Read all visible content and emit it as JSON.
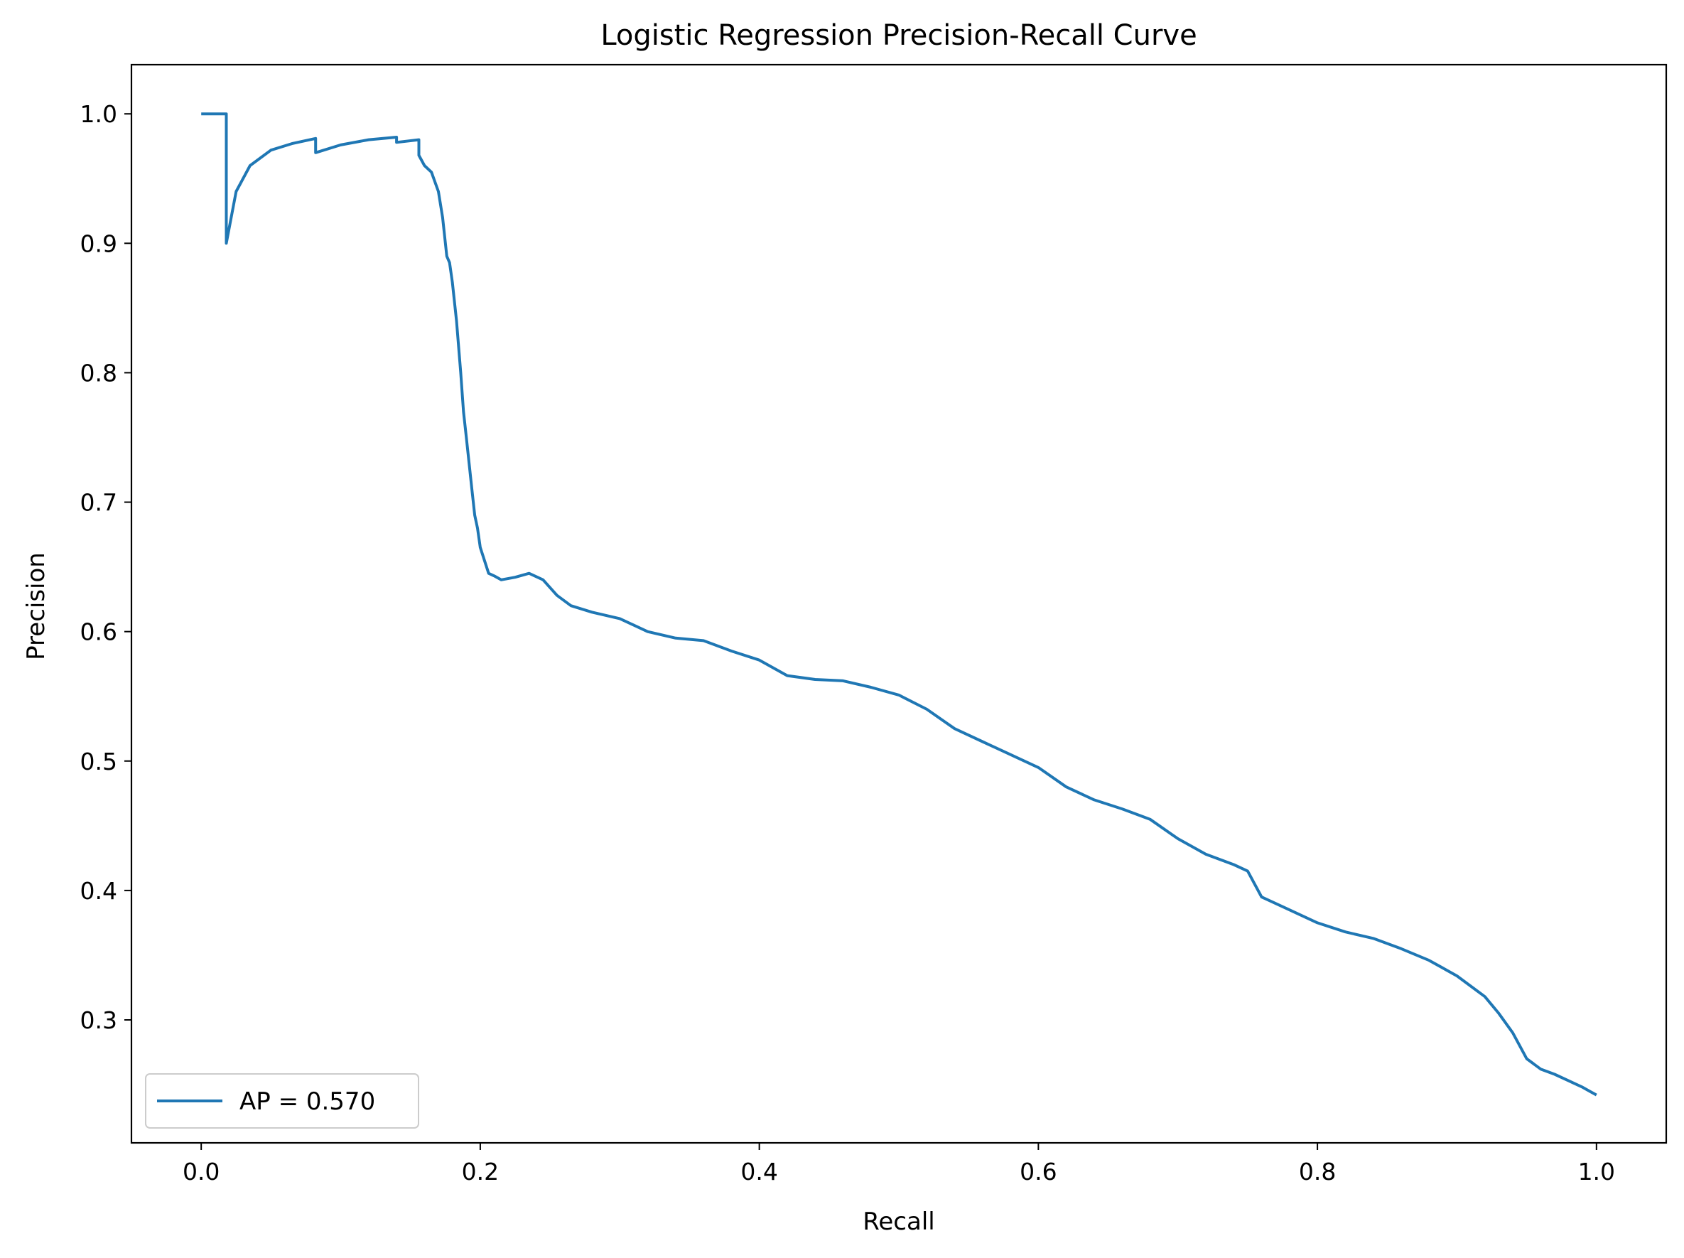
{
  "chart_data": {
    "type": "line",
    "title": "Logistic Regression Precision-Recall Curve",
    "xlabel": "Recall",
    "ylabel": "Precision",
    "xlim": [
      -0.05,
      1.05
    ],
    "ylim": [
      0.205,
      1.038
    ],
    "xticks": [
      "0.0",
      "0.2",
      "0.4",
      "0.6",
      "0.8",
      "1.0"
    ],
    "yticks": [
      "0.3",
      "0.4",
      "0.5",
      "0.6",
      "0.7",
      "0.8",
      "0.9",
      "1.0"
    ],
    "grid": false,
    "legend_position": "lower-left",
    "colors": {
      "series": "#1f77b4"
    },
    "series": [
      {
        "name": "AP = 0.570",
        "x": [
          0.0,
          0.018,
          0.018,
          0.025,
          0.035,
          0.05,
          0.065,
          0.082,
          0.082,
          0.1,
          0.12,
          0.14,
          0.14,
          0.156,
          0.156,
          0.16,
          0.165,
          0.17,
          0.173,
          0.176,
          0.178,
          0.18,
          0.183,
          0.186,
          0.188,
          0.19,
          0.192,
          0.194,
          0.196,
          0.198,
          0.2,
          0.203,
          0.206,
          0.21,
          0.215,
          0.225,
          0.235,
          0.245,
          0.255,
          0.265,
          0.28,
          0.3,
          0.32,
          0.34,
          0.36,
          0.38,
          0.4,
          0.42,
          0.44,
          0.46,
          0.48,
          0.5,
          0.52,
          0.54,
          0.56,
          0.58,
          0.6,
          0.62,
          0.64,
          0.66,
          0.68,
          0.7,
          0.72,
          0.74,
          0.75,
          0.76,
          0.78,
          0.8,
          0.82,
          0.84,
          0.86,
          0.88,
          0.9,
          0.92,
          0.93,
          0.94,
          0.95,
          0.96,
          0.97,
          0.98,
          0.99,
          0.995,
          1.0
        ],
        "y": [
          1.0,
          1.0,
          0.9,
          0.94,
          0.96,
          0.972,
          0.977,
          0.981,
          0.97,
          0.976,
          0.98,
          0.982,
          0.978,
          0.98,
          0.968,
          0.96,
          0.955,
          0.94,
          0.92,
          0.89,
          0.885,
          0.87,
          0.84,
          0.8,
          0.77,
          0.75,
          0.73,
          0.71,
          0.69,
          0.68,
          0.665,
          0.655,
          0.645,
          0.643,
          0.64,
          0.642,
          0.645,
          0.64,
          0.628,
          0.62,
          0.615,
          0.61,
          0.6,
          0.595,
          0.593,
          0.585,
          0.578,
          0.566,
          0.563,
          0.562,
          0.557,
          0.551,
          0.54,
          0.525,
          0.515,
          0.505,
          0.495,
          0.48,
          0.47,
          0.463,
          0.455,
          0.44,
          0.428,
          0.42,
          0.415,
          0.395,
          0.385,
          0.375,
          0.368,
          0.363,
          0.355,
          0.346,
          0.334,
          0.318,
          0.305,
          0.29,
          0.27,
          0.262,
          0.258,
          0.253,
          0.248,
          0.245,
          0.242
        ]
      }
    ]
  }
}
